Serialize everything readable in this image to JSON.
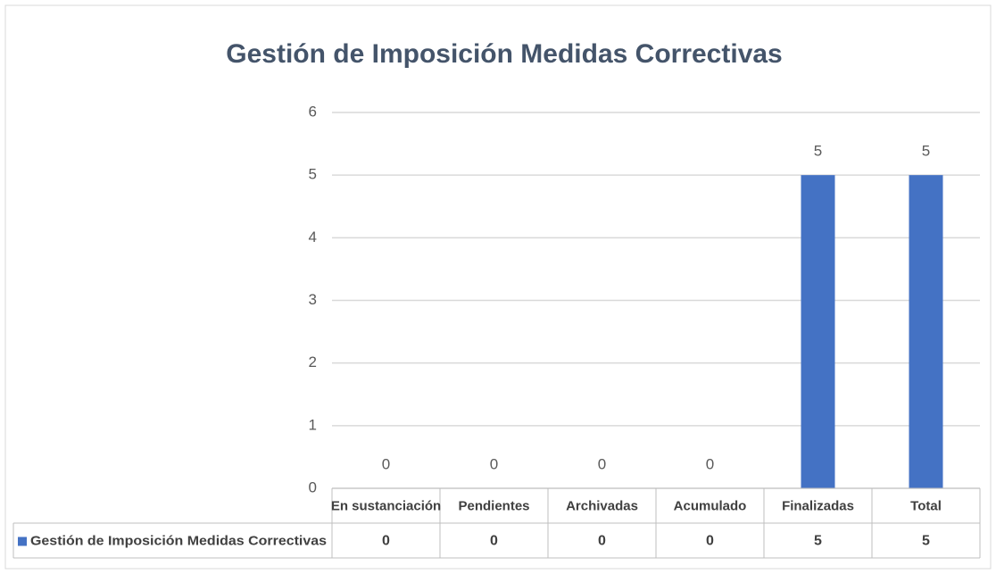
{
  "chart_data": {
    "type": "bar",
    "title": "Gestión de Imposición Medidas Correctivas",
    "categories": [
      "En sustanciación",
      "Pendientes",
      "Archivadas",
      "Acumulado",
      "Finalizadas",
      "Total"
    ],
    "series": [
      {
        "name": "Gestión de Imposición Medidas Correctivas",
        "color": "#4472c4",
        "values": [
          0,
          0,
          0,
          0,
          5,
          5
        ]
      }
    ],
    "ylim": [
      0,
      6
    ],
    "yticks": [
      0,
      1,
      2,
      3,
      4,
      5,
      6
    ],
    "grid": true,
    "data_table": true
  }
}
